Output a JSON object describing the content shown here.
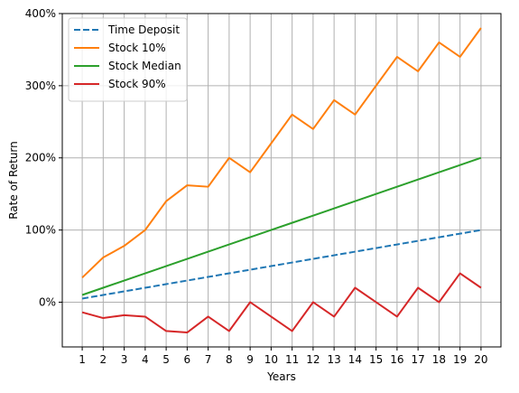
{
  "chart_data": {
    "type": "line",
    "x": [
      1,
      2,
      3,
      4,
      5,
      6,
      7,
      8,
      9,
      10,
      11,
      12,
      13,
      14,
      15,
      16,
      17,
      18,
      19,
      20
    ],
    "xticks": [
      "1",
      "2",
      "3",
      "4",
      "5",
      "6",
      "7",
      "8",
      "9",
      "10",
      "11",
      "12",
      "13",
      "14",
      "15",
      "16",
      "17",
      "18",
      "19",
      "20"
    ],
    "xlabel": "Years",
    "ylabel": "Rate of Return",
    "ylim": [
      -62,
      400
    ],
    "yticks": [
      0,
      100,
      200,
      300,
      400
    ],
    "ytick_labels": [
      "0%",
      "100%",
      "200%",
      "300%",
      "400%"
    ],
    "grid": true,
    "legend_position": "upper-left",
    "series": [
      {
        "name": "Time Deposit",
        "color": "#1f77b4",
        "dashed": true,
        "values": [
          5,
          10,
          15,
          20,
          25,
          30,
          35,
          40,
          45,
          50,
          55,
          60,
          65,
          70,
          75,
          80,
          85,
          90,
          95,
          100
        ]
      },
      {
        "name": "Stock 10%",
        "color": "#ff7f0e",
        "dashed": false,
        "values": [
          34,
          62,
          78,
          100,
          140,
          162,
          160,
          200,
          180,
          220,
          260,
          240,
          280,
          260,
          300,
          340,
          320,
          360,
          340,
          380
        ]
      },
      {
        "name": "Stock Median",
        "color": "#2ca02c",
        "dashed": false,
        "values": [
          10,
          20,
          30,
          40,
          50,
          60,
          70,
          80,
          90,
          100,
          110,
          120,
          130,
          140,
          150,
          160,
          170,
          180,
          190,
          200
        ]
      },
      {
        "name": "Stock 90%",
        "color": "#d62728",
        "dashed": false,
        "values": [
          -14,
          -22,
          -18,
          -20,
          -40,
          -42,
          -20,
          -40,
          0,
          -20,
          -40,
          0,
          -20,
          20,
          0,
          -20,
          20,
          0,
          40,
          20
        ]
      }
    ]
  }
}
